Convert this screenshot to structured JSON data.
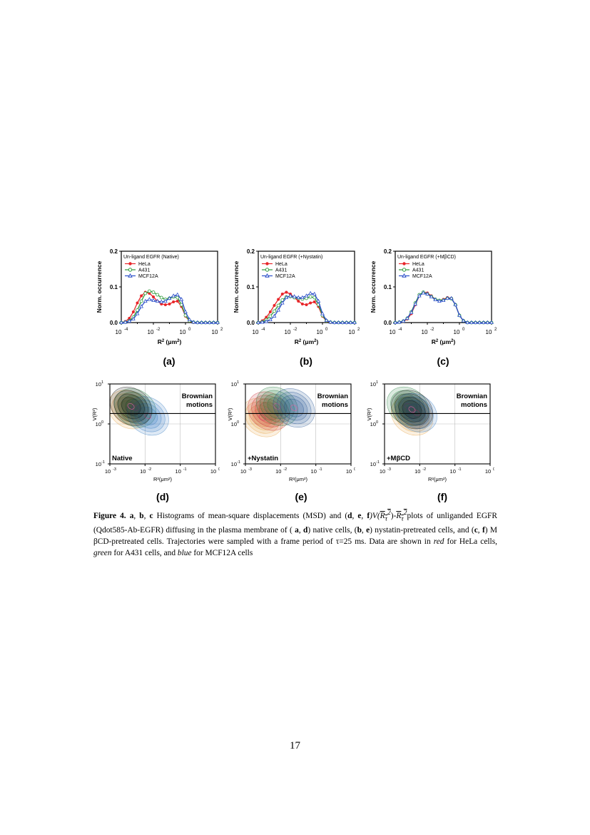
{
  "histograms": [
    {
      "id": "a",
      "panel_label": "(a)",
      "legend_title": "Un-ligand EGFR (Native)",
      "chart_data": {
        "type": "line",
        "x": [
          -4,
          -3.75,
          -3.5,
          -3.25,
          -3,
          -2.75,
          -2.5,
          -2.25,
          -2,
          -1.75,
          -1.5,
          -1.25,
          -1,
          -0.75,
          -0.5,
          -0.25,
          0,
          0.25,
          0.5,
          0.75,
          1,
          1.25,
          1.5,
          1.75,
          2
        ],
        "series": [
          {
            "name": "HeLa",
            "color": "#e8262a",
            "marker": "filled-circle",
            "values": [
              0,
              0.003,
              0.012,
              0.03,
              0.055,
              0.075,
              0.085,
              0.082,
              0.072,
              0.06,
              0.052,
              0.05,
              0.052,
              0.058,
              0.06,
              0.045,
              0.018,
              0.004,
              0,
              0,
              0,
              0,
              0,
              0,
              0
            ]
          },
          {
            "name": "A431",
            "color": "#2e9a3a",
            "marker": "open-circle",
            "values": [
              0,
              0.001,
              0.005,
              0.015,
              0.035,
              0.06,
              0.082,
              0.088,
              0.085,
              0.078,
              0.07,
              0.065,
              0.068,
              0.072,
              0.07,
              0.05,
              0.02,
              0.005,
              0.001,
              0,
              0,
              0,
              0,
              0,
              0
            ]
          },
          {
            "name": "MCF12A",
            "color": "#2b4fc9",
            "marker": "open-triangle",
            "values": [
              0,
              0.001,
              0.004,
              0.01,
              0.025,
              0.045,
              0.06,
              0.065,
              0.062,
              0.06,
              0.058,
              0.06,
              0.068,
              0.075,
              0.078,
              0.065,
              0.03,
              0.008,
              0.001,
              0,
              0,
              0,
              0,
              0,
              0
            ]
          }
        ],
        "xlim": [
          -4,
          2
        ],
        "ylim": [
          0,
          0.2
        ],
        "xticks": [
          "10",
          "10",
          "10",
          "10"
        ],
        "xtick_exp": [
          "-4",
          "-2",
          "0",
          "2"
        ],
        "yticks": [
          "0.0",
          "0.1",
          "0.2"
        ],
        "ylabel": "Norm. occurrence",
        "xlabel_main": "R",
        "xlabel_sup": "2",
        "xlabel_unit": " (μm",
        "xlabel_unit_sup": "2",
        "xlabel_close": ")"
      }
    },
    {
      "id": "b",
      "panel_label": "(b)",
      "legend_title": "Un-ligand EGFR (+Nystatin)",
      "chart_data": {
        "type": "line",
        "x": [
          -4,
          -3.75,
          -3.5,
          -3.25,
          -3,
          -2.75,
          -2.5,
          -2.25,
          -2,
          -1.75,
          -1.5,
          -1.25,
          -1,
          -0.75,
          -0.5,
          -0.25,
          0,
          0.25,
          0.5,
          0.75,
          1,
          1.25,
          1.5,
          1.75,
          2
        ],
        "series": [
          {
            "name": "HeLa",
            "color": "#e8262a",
            "marker": "filled-circle",
            "values": [
              0,
              0.005,
              0.015,
              0.03,
              0.048,
              0.065,
              0.08,
              0.085,
              0.08,
              0.07,
              0.06,
              0.052,
              0.05,
              0.055,
              0.058,
              0.045,
              0.018,
              0.004,
              0,
              0,
              0,
              0,
              0,
              0,
              0
            ]
          },
          {
            "name": "A431",
            "color": "#2e9a3a",
            "marker": "open-circle",
            "values": [
              0,
              0.002,
              0.008,
              0.018,
              0.032,
              0.048,
              0.063,
              0.072,
              0.073,
              0.07,
              0.068,
              0.066,
              0.068,
              0.072,
              0.07,
              0.05,
              0.02,
              0.005,
              0.001,
              0,
              0,
              0,
              0,
              0,
              0
            ]
          },
          {
            "name": "MCF12A",
            "color": "#2b4fc9",
            "marker": "open-triangle",
            "values": [
              0,
              0.001,
              0.003,
              0.008,
              0.018,
              0.035,
              0.055,
              0.07,
              0.075,
              0.073,
              0.07,
              0.07,
              0.075,
              0.082,
              0.08,
              0.06,
              0.025,
              0.006,
              0.001,
              0,
              0,
              0,
              0,
              0,
              0
            ]
          }
        ],
        "xlim": [
          -4,
          2
        ],
        "ylim": [
          0,
          0.2
        ],
        "xticks": [
          "10",
          "10",
          "10",
          "10"
        ],
        "xtick_exp": [
          "-4",
          "-2",
          "0",
          "2"
        ],
        "yticks": [
          "0.0",
          "0.1",
          "0.2"
        ],
        "ylabel": "Norm. occurrence",
        "xlabel_main": "R",
        "xlabel_sup": "2",
        "xlabel_unit": " (μm",
        "xlabel_unit_sup": "2",
        "xlabel_close": ")"
      }
    },
    {
      "id": "c",
      "panel_label": "(c)",
      "legend_title": "Un-ligand EGFR (+MβCD)",
      "chart_data": {
        "type": "line",
        "x": [
          -4,
          -3.75,
          -3.5,
          -3.25,
          -3,
          -2.75,
          -2.5,
          -2.25,
          -2,
          -1.75,
          -1.5,
          -1.25,
          -1,
          -0.75,
          -0.5,
          -0.25,
          0,
          0.25,
          0.5,
          0.75,
          1,
          1.25,
          1.5,
          1.75,
          2
        ],
        "series": [
          {
            "name": "HeLa",
            "color": "#e8262a",
            "marker": "filled-circle",
            "values": [
              0,
              0.001,
              0.003,
              0.01,
              0.025,
              0.05,
              0.075,
              0.085,
              0.083,
              0.075,
              0.065,
              0.062,
              0.065,
              0.07,
              0.068,
              0.05,
              0.02,
              0.005,
              0,
              0,
              0,
              0,
              0,
              0,
              0
            ]
          },
          {
            "name": "A431",
            "color": "#2e9a3a",
            "marker": "open-circle",
            "values": [
              0,
              0.001,
              0.004,
              0.012,
              0.03,
              0.055,
              0.078,
              0.085,
              0.08,
              0.073,
              0.065,
              0.062,
              0.063,
              0.068,
              0.067,
              0.05,
              0.02,
              0.005,
              0,
              0,
              0,
              0,
              0,
              0,
              0
            ]
          },
          {
            "name": "MCF12A",
            "color": "#2b4fc9",
            "marker": "open-triangle",
            "values": [
              0,
              0.001,
              0.004,
              0.012,
              0.028,
              0.052,
              0.075,
              0.083,
              0.08,
              0.072,
              0.064,
              0.06,
              0.062,
              0.068,
              0.068,
              0.05,
              0.02,
              0.005,
              0,
              0,
              0,
              0,
              0,
              0,
              0
            ]
          }
        ],
        "xlim": [
          -4,
          2
        ],
        "ylim": [
          0,
          0.2
        ],
        "xticks": [
          "10",
          "10",
          "10",
          "10"
        ],
        "xtick_exp": [
          "-4",
          "-2",
          "0",
          "2"
        ],
        "yticks": [
          "0.0",
          "0.1",
          "0.2"
        ],
        "ylabel": "Norm. occurrence",
        "xlabel_main": "R",
        "xlabel_sup": "2",
        "xlabel_unit": " (μm",
        "xlabel_unit_sup": "2",
        "xlabel_close": ")"
      }
    }
  ],
  "contours": [
    {
      "id": "d",
      "panel_label": "(d)",
      "condition": "Native",
      "region_label_1": "Brownian",
      "region_label_2": "motions",
      "xticks": [
        "10",
        "10",
        "10",
        "10"
      ],
      "xtick_exp": [
        "-3",
        "-2",
        "-1",
        "0"
      ],
      "yticks": [
        "10",
        "10",
        "10"
      ],
      "ytick_exp": [
        "1",
        "0",
        "-1"
      ],
      "xlabel": "R²(μm²)",
      "ylabel": "V(R²)",
      "blobs": [
        {
          "color": "#e8a040",
          "cx": 0.18,
          "cy": 0.32
        },
        {
          "color": "#1f7a3a",
          "cx": 0.24,
          "cy": 0.3
        },
        {
          "color": "#2f78c0",
          "cx": 0.36,
          "cy": 0.4
        },
        {
          "color": "#111111",
          "cx": 0.2,
          "cy": 0.28
        }
      ]
    },
    {
      "id": "e",
      "panel_label": "(e)",
      "condition": "+Nystatin",
      "region_label_1": "Brownian",
      "region_label_2": "motions",
      "xticks": [
        "10",
        "10",
        "10",
        "10"
      ],
      "xtick_exp": [
        "-3",
        "-2",
        "-1",
        "0"
      ],
      "yticks": [
        "10",
        "10",
        "10"
      ],
      "ytick_exp": [
        "1",
        "0",
        "-1"
      ],
      "xlabel": "R²(μm²)",
      "ylabel": "V(R²)",
      "blobs": [
        {
          "color": "#e8a040",
          "cx": 0.16,
          "cy": 0.42
        },
        {
          "color": "#c8202a",
          "cx": 0.22,
          "cy": 0.34
        },
        {
          "color": "#1f7a3a",
          "cx": 0.3,
          "cy": 0.28
        },
        {
          "color": "#1f4f90",
          "cx": 0.46,
          "cy": 0.3
        }
      ]
    },
    {
      "id": "f",
      "panel_label": "(f)",
      "condition": "+MβCD",
      "region_label_1": "Brownian",
      "region_label_2": "motions",
      "xticks": [
        "10",
        "10",
        "10",
        "10"
      ],
      "xtick_exp": [
        "-3",
        "-2",
        "-1",
        "0"
      ],
      "yticks": [
        "10",
        "10",
        "10"
      ],
      "ytick_exp": [
        "1",
        "0",
        "-1"
      ],
      "xlabel": "R²(μm²)",
      "ylabel": "V(R²)",
      "blobs": [
        {
          "color": "#e8a040",
          "cx": 0.26,
          "cy": 0.4
        },
        {
          "color": "#1f7a3a",
          "cx": 0.22,
          "cy": 0.28
        },
        {
          "color": "#2f78c0",
          "cx": 0.3,
          "cy": 0.36
        },
        {
          "color": "#111111",
          "cx": 0.26,
          "cy": 0.32
        }
      ]
    }
  ],
  "caption": {
    "fig": "Figure 4.",
    "part1": " a",
    "part2": ", ",
    "b": "b",
    "c": "c",
    "text1": " Histograms of mean-square displacements (MSD) and (",
    "d": "d",
    "e": "e",
    "f": "f",
    "text2": ")V(",
    "text3": ")-",
    "rtau": "R",
    "text4": "plots of unliganded EGFR (Qdot585-Ab-EGFR) diffusing in the plasma membrane of (",
    "text5": ") native cells, (",
    "text6": ") nystatin-pretreated cells, and (",
    "text7": ") M βCD-pretreated cells. Trajectories were sampled with a frame period of τ=25 ms. Data are shown in ",
    "red": "red",
    "text8": " for HeLa cells, ",
    "green": "green",
    "text9": " for A431 cells, and ",
    "blue": "blue",
    "text10": " for MCF12A cells"
  },
  "page_number": "17"
}
